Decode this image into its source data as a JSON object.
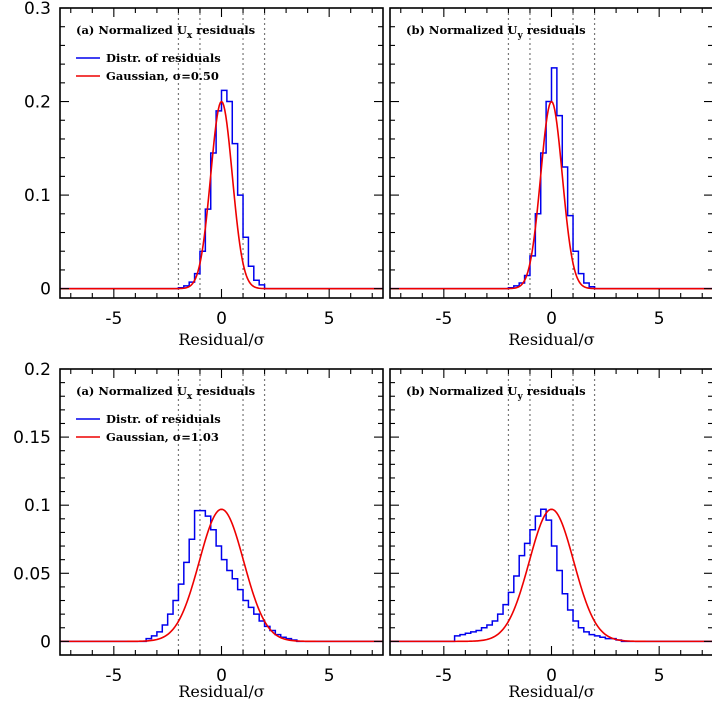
{
  "chart_data": [
    {
      "id": "top-left",
      "type": "histogram",
      "title_prefix": "(a) Normalized U",
      "title_sub": "x",
      "title_suffix": " residuals",
      "xlabel": "Residual/σ",
      "xlim": [
        -7.5,
        7.5
      ],
      "ylim": [
        -0.01,
        0.3
      ],
      "x_ticks": [
        "-5",
        "0",
        "5"
      ],
      "y_ticks": [
        "0",
        "0.1",
        "0.2",
        "0.3"
      ],
      "guide_lines": [
        -2,
        -1,
        1,
        2
      ],
      "legend": {
        "hist_label": "Distr. of residuals",
        "curve_label": "Gaussian, σ=0.50"
      },
      "gaussian": {
        "mu": 0,
        "sigma": 0.5,
        "peak": 0.2
      },
      "hist": {
        "bin_width": 0.25,
        "edges_start": -2.0,
        "values": [
          0.001,
          0.003,
          0.007,
          0.016,
          0.04,
          0.085,
          0.145,
          0.19,
          0.212,
          0.2,
          0.155,
          0.1,
          0.055,
          0.024,
          0.009,
          0.004
        ]
      }
    },
    {
      "id": "top-right",
      "type": "histogram",
      "title_prefix": "(b) Normalized U",
      "title_sub": "y",
      "title_suffix": " residuals",
      "xlabel": "Residual/σ",
      "xlim": [
        -7.5,
        7.5
      ],
      "ylim": [
        -0.01,
        0.3
      ],
      "x_ticks": [
        "-5",
        "0",
        "5"
      ],
      "y_ticks": [],
      "guide_lines": [
        -2,
        -1,
        1,
        2
      ],
      "legend": null,
      "gaussian": {
        "mu": 0,
        "sigma": 0.5,
        "peak": 0.2
      },
      "hist": {
        "bin_width": 0.25,
        "edges_start": -2.0,
        "values": [
          0.001,
          0.003,
          0.006,
          0.014,
          0.035,
          0.08,
          0.145,
          0.2,
          0.236,
          0.185,
          0.13,
          0.078,
          0.04,
          0.016,
          0.006,
          0.002
        ]
      }
    },
    {
      "id": "bottom-left",
      "type": "histogram",
      "title_prefix": "(a) Normalized U",
      "title_sub": "x",
      "title_suffix": " residuals",
      "xlabel": "Residual/σ",
      "xlim": [
        -7.5,
        7.5
      ],
      "ylim": [
        -0.01,
        0.2
      ],
      "x_ticks": [
        "-5",
        "0",
        "5"
      ],
      "y_ticks": [
        "0",
        "0.05",
        "0.1",
        "0.15",
        "0.2"
      ],
      "guide_lines": [
        -2,
        -1,
        1,
        2
      ],
      "legend": {
        "hist_label": "Distr. of residuals",
        "curve_label": "Gaussian, σ=1.03"
      },
      "gaussian": {
        "mu": 0,
        "sigma": 1.03,
        "peak": 0.097
      },
      "hist": {
        "bin_width": 0.25,
        "edges_start": -3.5,
        "values": [
          0.002,
          0.004,
          0.007,
          0.012,
          0.02,
          0.03,
          0.042,
          0.058,
          0.075,
          0.096,
          0.096,
          0.092,
          0.082,
          0.07,
          0.06,
          0.052,
          0.046,
          0.038,
          0.03,
          0.025,
          0.02,
          0.015,
          0.011,
          0.008,
          0.005,
          0.003,
          0.002,
          0.001
        ]
      }
    },
    {
      "id": "bottom-right",
      "type": "histogram",
      "title_prefix": "(b) Normalized U",
      "title_sub": "y",
      "title_suffix": " residuals",
      "xlabel": "Residual/σ",
      "xlim": [
        -7.5,
        7.5
      ],
      "ylim": [
        -0.01,
        0.2
      ],
      "x_ticks": [
        "-5",
        "0",
        "5"
      ],
      "y_ticks": [],
      "guide_lines": [
        -2,
        -1,
        1,
        2
      ],
      "legend": null,
      "gaussian": {
        "mu": 0,
        "sigma": 1.03,
        "peak": 0.097
      },
      "hist": {
        "bin_width": 0.25,
        "edges_start": -4.5,
        "values": [
          0.004,
          0.005,
          0.006,
          0.007,
          0.008,
          0.01,
          0.012,
          0.015,
          0.02,
          0.027,
          0.036,
          0.048,
          0.063,
          0.072,
          0.082,
          0.092,
          0.097,
          0.089,
          0.07,
          0.052,
          0.035,
          0.023,
          0.015,
          0.01,
          0.007,
          0.005,
          0.004,
          0.003,
          0.002,
          0.002,
          0.001
        ]
      }
    }
  ],
  "colors": {
    "histogram": "#0000ee",
    "gaussian": "#ee0000",
    "guides": "#777777",
    "frame": "#000000"
  }
}
